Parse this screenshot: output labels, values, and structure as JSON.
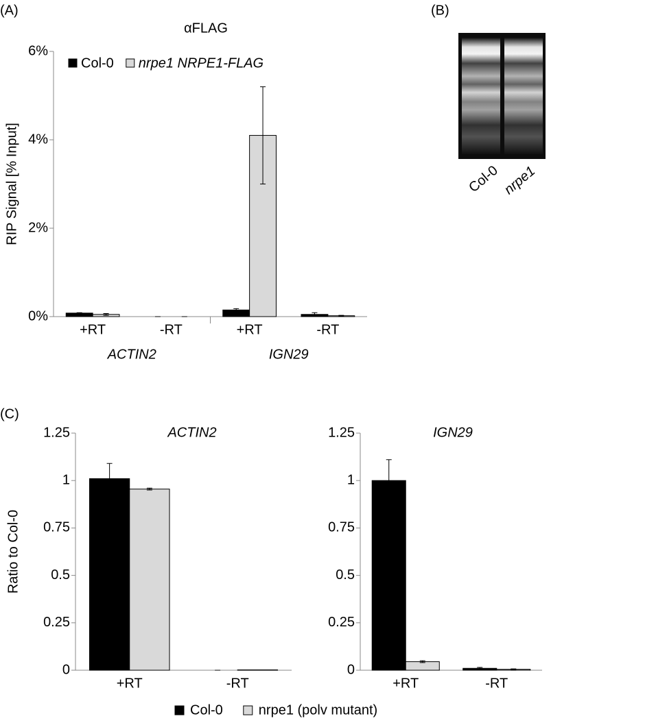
{
  "panel_labels": [
    "(A)",
    "(B)",
    "(C)"
  ],
  "gel": {
    "lanes": [
      "Col-0",
      "nrpe1"
    ]
  },
  "chart_data": [
    {
      "type": "bar",
      "title": "αFLAG",
      "y_label": "RIP Signal [% Input]",
      "categories": [
        "+RT",
        "-RT",
        "+RT",
        "-RT"
      ],
      "groups": [
        "ACTIN2",
        "IGN29"
      ],
      "series": [
        {
          "name": "Col-0",
          "color": "#000000",
          "values": [
            0.08,
            0,
            0.15,
            0.05
          ],
          "errors": [
            0.01,
            0,
            0.03,
            0.04
          ]
        },
        {
          "name": "nrpe1 NRPE1-FLAG",
          "color": "#d9d9d9",
          "values": [
            0.05,
            0,
            4.1,
            0.02
          ],
          "errors": [
            0.02,
            0,
            1.1,
            0.01
          ]
        }
      ],
      "ylim": [
        0,
        6
      ],
      "yticks": [
        {
          "value": 0,
          "label": "0%"
        },
        {
          "value": 2,
          "label": "2%"
        },
        {
          "value": 4,
          "label": "4%"
        },
        {
          "value": 6,
          "label": "6%"
        }
      ],
      "legend": "top-left"
    },
    {
      "type": "bar",
      "title": "ACTIN2",
      "y_label": "Ratio to Col-0",
      "categories": [
        "+RT",
        "-RT"
      ],
      "series": [
        {
          "name": "Col-0",
          "color": "#000000",
          "values": [
            1.01,
            0
          ],
          "errors": [
            0.08,
            0
          ]
        },
        {
          "name": "nrpe1 (polv mutant)",
          "color": "#d9d9d9",
          "values": [
            0.955,
            0.002
          ],
          "errors": [
            0.005,
            0
          ]
        }
      ],
      "ylim": [
        0,
        1.25
      ],
      "yticks": [
        0,
        0.25,
        0.5,
        0.75,
        1,
        1.25
      ],
      "legend": "bottom"
    },
    {
      "type": "bar",
      "title": "IGN29",
      "categories": [
        "+RT",
        "-RT"
      ],
      "series": [
        {
          "color": "#000000",
          "values": [
            1.0,
            0.01
          ],
          "errors": [
            0.11,
            0.005
          ]
        },
        {
          "color": "#d9d9d9",
          "values": [
            0.045,
            0.005
          ],
          "errors": [
            0.005,
            0.002
          ]
        }
      ],
      "ylim": [
        0,
        1.25
      ],
      "yticks": [
        0,
        0.25,
        0.5,
        0.75,
        1,
        1.25
      ]
    }
  ]
}
